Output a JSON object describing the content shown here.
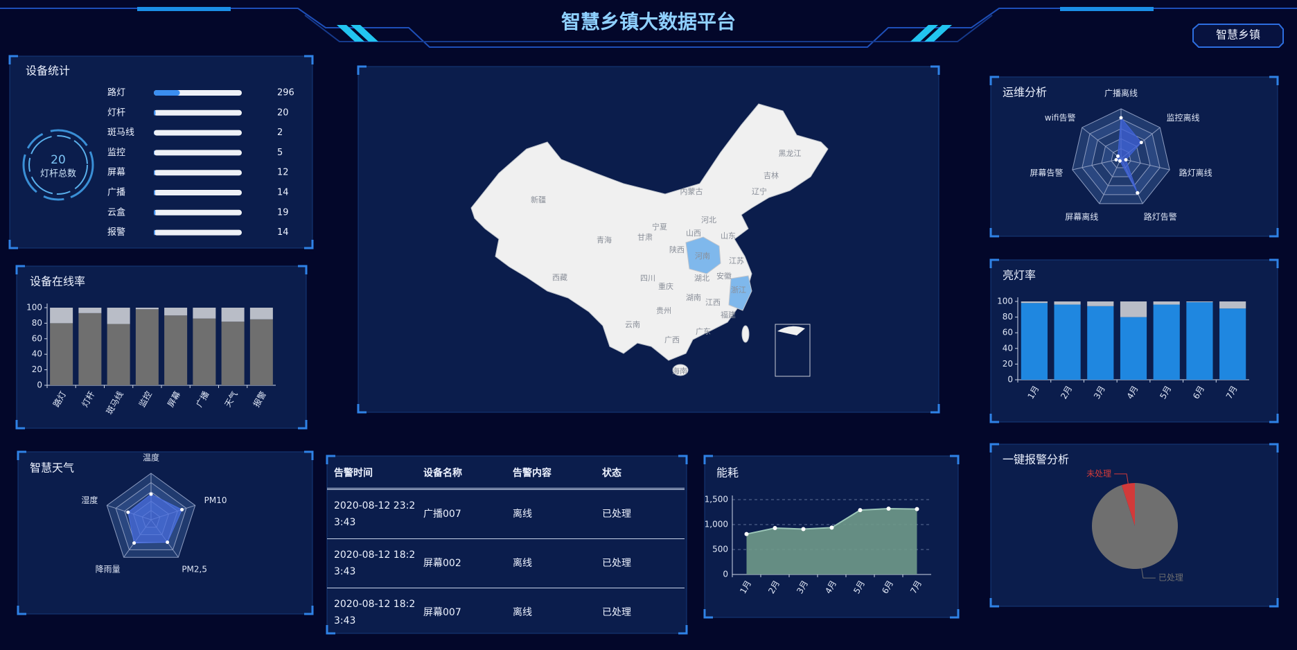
{
  "header": {
    "title": "智慧乡镇大数据平台",
    "button": "智慧乡镇"
  },
  "device_stats": {
    "title": "设备统计",
    "ring_value": 20,
    "ring_label": "灯杆总数",
    "chart_data": {
      "type": "progress",
      "categories": [
        "路灯",
        "灯杆",
        "斑马线",
        "监控",
        "屏幕",
        "广播",
        "云盒",
        "报警"
      ],
      "values": [
        296,
        20,
        2,
        5,
        12,
        14,
        19,
        14
      ],
      "xlim": [
        0,
        1000
      ],
      "color": "#3b8ef0"
    }
  },
  "online_rate": {
    "title": "设备在线率",
    "chart_data": {
      "type": "stacked_bar",
      "categories": [
        "路灯",
        "灯杆",
        "斑马线",
        "监控",
        "屏幕",
        "广播",
        "天气",
        "报警"
      ],
      "series": [
        {
          "color": "#6f6f6f",
          "values": [
            80,
            93,
            79,
            98,
            90,
            86,
            82,
            85
          ]
        },
        {
          "color": "#b9bdc7",
          "values": [
            20,
            7,
            21,
            2,
            10,
            14,
            18,
            15
          ]
        }
      ],
      "ylim": [
        0,
        100
      ],
      "yticks": [
        0,
        20,
        40,
        60,
        80,
        100
      ]
    }
  },
  "weather": {
    "title": "智慧天气",
    "chart_data": {
      "type": "radar",
      "categories": [
        "温度",
        "PM10",
        "PM2,5",
        "降雨量",
        "湿度"
      ],
      "values": [
        55,
        70,
        60,
        62,
        52
      ],
      "rlim": [
        0,
        100
      ],
      "color": "#4a6fe0"
    }
  },
  "map": {
    "chart_data": {
      "type": "map",
      "regions": [
        {
          "name": "新疆",
          "highlight": false
        },
        {
          "name": "西藏",
          "highlight": false
        },
        {
          "name": "青海",
          "highlight": false
        },
        {
          "name": "甘肃",
          "highlight": false
        },
        {
          "name": "内蒙古",
          "highlight": false
        },
        {
          "name": "黑龙江",
          "highlight": false
        },
        {
          "name": "吉林",
          "highlight": false
        },
        {
          "name": "辽宁",
          "highlight": false
        },
        {
          "name": "宁夏",
          "highlight": false
        },
        {
          "name": "陕西",
          "highlight": false
        },
        {
          "name": "山西",
          "highlight": false
        },
        {
          "name": "河北",
          "highlight": false
        },
        {
          "name": "山东",
          "highlight": false
        },
        {
          "name": "河南",
          "highlight": true
        },
        {
          "name": "江苏",
          "highlight": false
        },
        {
          "name": "安徽",
          "highlight": false
        },
        {
          "name": "湖北",
          "highlight": false
        },
        {
          "name": "四川",
          "highlight": false
        },
        {
          "name": "重庆",
          "highlight": false
        },
        {
          "name": "贵州",
          "highlight": false
        },
        {
          "name": "云南",
          "highlight": false
        },
        {
          "name": "湖南",
          "highlight": false
        },
        {
          "name": "江西",
          "highlight": false
        },
        {
          "name": "浙江",
          "highlight": true
        },
        {
          "name": "福建",
          "highlight": false
        },
        {
          "name": "广西",
          "highlight": false
        },
        {
          "name": "广东",
          "highlight": false
        },
        {
          "name": "海南",
          "highlight": false
        }
      ],
      "color": "#f0f0f0",
      "highlight_color": "#7fb8ec"
    }
  },
  "alarm_table": {
    "columns": [
      "告警时间",
      "设备名称",
      "告警内容",
      "状态"
    ],
    "rows": [
      [
        "2020-08-12 23:23:43",
        "广播007",
        "离线",
        "已处理"
      ],
      [
        "2020-08-12 18:23:43",
        "屏幕002",
        "离线",
        "已处理"
      ],
      [
        "2020-08-12 18:23:43",
        "屏幕007",
        "离线",
        "已处理"
      ]
    ]
  },
  "energy": {
    "title": "能耗",
    "chart_data": {
      "type": "area",
      "categories": [
        "1月",
        "2月",
        "3月",
        "4月",
        "5月",
        "6月",
        "7月"
      ],
      "values": [
        810,
        930,
        910,
        940,
        1290,
        1320,
        1310
      ],
      "ylim": [
        0,
        1500
      ],
      "yticks": [
        0,
        500,
        {
          "value": 1000,
          "label": "1,000"
        },
        {
          "value": 1500,
          "label": "1,500"
        }
      ],
      "color": "#6f9a8a"
    }
  },
  "ops": {
    "title": "运维分析",
    "chart_data": {
      "type": "radar",
      "categories": [
        "广播离线",
        "监控离线",
        "路灯离线",
        "路灯告警",
        "屏幕离线",
        "屏幕告警",
        "wifi告警"
      ],
      "values": [
        82,
        52,
        10,
        76,
        5,
        10,
        8
      ],
      "rlim": [
        0,
        100
      ],
      "color": "#3f62d8"
    }
  },
  "light_rate": {
    "title": "亮灯率",
    "chart_data": {
      "type": "stacked_bar",
      "categories": [
        "1月",
        "2月",
        "3月",
        "4月",
        "5月",
        "6月",
        "7月"
      ],
      "series": [
        {
          "color": "#1f87e0",
          "values": [
            98,
            96,
            94,
            80,
            96,
            99,
            91
          ]
        },
        {
          "color": "#b9bdc7",
          "values": [
            2,
            4,
            6,
            20,
            4,
            1,
            9
          ]
        }
      ],
      "ylim": [
        0,
        100
      ],
      "yticks": [
        0,
        20,
        40,
        60,
        80,
        100
      ]
    }
  },
  "alarm": {
    "title": "一键报警分析",
    "chart_data": {
      "type": "pie",
      "categories": [
        "未处理",
        "已处理"
      ],
      "values": [
        5,
        95
      ],
      "colors": [
        "#d23a3a",
        "#6f6f6f"
      ]
    }
  }
}
